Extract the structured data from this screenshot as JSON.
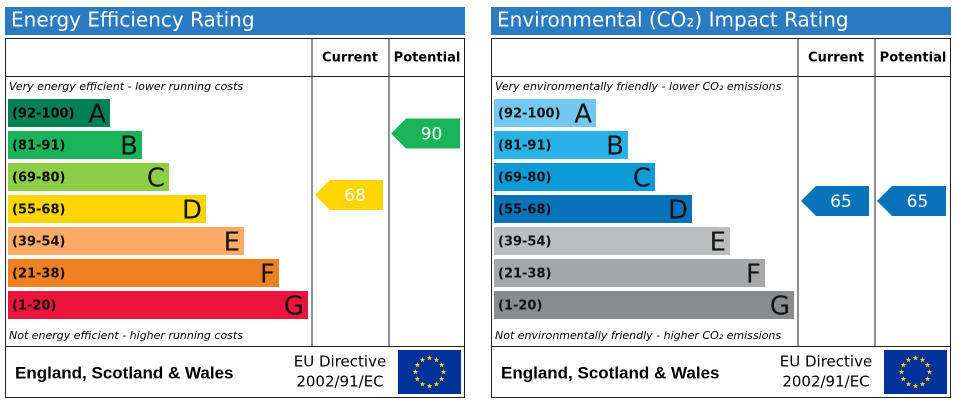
{
  "chart_data": [
    {
      "type": "epc",
      "title": "Energy Efficiency Rating",
      "columns": [
        "Current",
        "Potential"
      ],
      "top_note": "Very energy efficient - lower running costs",
      "bottom_note": "Not energy efficient - higher running costs",
      "bands": [
        {
          "range": "(92-100)",
          "letter": "A",
          "color": "#008054"
        },
        {
          "range": "(81-91)",
          "letter": "B",
          "color": "#19b459"
        },
        {
          "range": "(69-80)",
          "letter": "C",
          "color": "#8dce46"
        },
        {
          "range": "(55-68)",
          "letter": "D",
          "color": "#ffd500"
        },
        {
          "range": "(39-54)",
          "letter": "E",
          "color": "#fcaa65"
        },
        {
          "range": "(21-38)",
          "letter": "F",
          "color": "#ef8023"
        },
        {
          "range": "(1-20)",
          "letter": "G",
          "color": "#e9153b"
        }
      ],
      "current": 68,
      "potential": 90,
      "footer": {
        "region": "England, Scotland & Wales",
        "directive": [
          "EU Directive",
          "2002/91/EC"
        ]
      }
    },
    {
      "type": "epc",
      "title": "Environmental (CO₂) Impact Rating",
      "columns": [
        "Current",
        "Potential"
      ],
      "top_note": "Very environmentally friendly - lower CO₂ emissions",
      "bottom_note": "Not environmentally friendly - higher CO₂ emissions",
      "bands": [
        {
          "range": "(92-100)",
          "letter": "A",
          "color": "#73c8ef"
        },
        {
          "range": "(81-91)",
          "letter": "B",
          "color": "#2ab2e7"
        },
        {
          "range": "(69-80)",
          "letter": "C",
          "color": "#0e9ad7"
        },
        {
          "range": "(55-68)",
          "letter": "D",
          "color": "#0a72b8"
        },
        {
          "range": "(39-54)",
          "letter": "E",
          "color": "#bbbdbf"
        },
        {
          "range": "(21-38)",
          "letter": "F",
          "color": "#a5a7a9"
        },
        {
          "range": "(1-20)",
          "letter": "G",
          "color": "#898b8d"
        }
      ],
      "current": 65,
      "potential": 65,
      "footer": {
        "region": "England, Scotland & Wales",
        "directive": [
          "EU Directive",
          "2002/91/EC"
        ]
      }
    }
  ]
}
